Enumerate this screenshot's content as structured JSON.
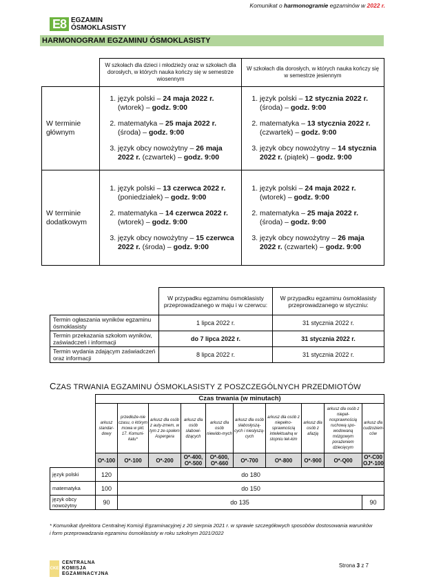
{
  "header": {
    "note_pre": "Komunikat o ",
    "note_bold": "harmonogramie",
    "note_mid": " egzaminów w ",
    "note_year": "2022 r.",
    "logo_mark": "E8",
    "logo_line1": "EGZAMIN",
    "logo_line2": "ÓSMOKLASISTY",
    "banner": "HARMONOGRAM EGZAMINU ÓSMOKLASISTY",
    "accent": "#b2d59b",
    "logo_color": "#6db43f"
  },
  "schedule": {
    "columns": [
      "W szkołach dla dzieci i młodzieży oraz w szkołach dla dorosłych, w których nauka kończy się w semestrze wiosennym",
      "W szkołach dla dorosłych, w których nauka kończy się w semestrze jesiennym"
    ],
    "rows": [
      {
        "label": "W terminie głównym",
        "spring": [
          {
            "subject": "język polski – ",
            "date": "24 maja 2022 r.",
            "day": " (wtorek) – ",
            "time": "godz. 9:00"
          },
          {
            "subject": "matematyka – ",
            "date": "25 maja 2022 r.",
            "day": " (środa) – ",
            "time": "godz. 9:00"
          },
          {
            "subject": "język obcy nowożytny – ",
            "date": "26 maja 2022 r.",
            "day": " (czwartek) – ",
            "time": "godz. 9:00"
          }
        ],
        "autumn": [
          {
            "subject": "język polski – ",
            "date": "12 stycznia 2022 r.",
            "day": " (środa) – ",
            "time": "godz. 9:00"
          },
          {
            "subject": "matematyka – ",
            "date": "13 stycznia 2022 r.",
            "day": " (czwartek) – ",
            "time": "godz. 9:00"
          },
          {
            "subject": "język obcy nowożytny – ",
            "date": "14 stycznia 2022 r.",
            "day": " (piątek) – ",
            "time": "godz. 9:00"
          }
        ]
      },
      {
        "label": "W terminie dodatkowym",
        "spring": [
          {
            "subject": "język polski – ",
            "date": "13 czerwca 2022 r.",
            "day": " (poniedziałek) – ",
            "time": "godz. 9:00"
          },
          {
            "subject": "matematyka – ",
            "date": "14 czerwca 2022 r.",
            "day": " (wtorek) – ",
            "time": "godz. 9:00"
          },
          {
            "subject": "język obcy nowożytny – ",
            "date": "15 czerwca 2022 r.",
            "day": " (środa) – ",
            "time": "godz. 9:00"
          }
        ],
        "autumn": [
          {
            "subject": "język polski – ",
            "date": "24 maja 2022 r.",
            "day": " (wtorek) – ",
            "time": "godz. 9:00"
          },
          {
            "subject": "matematyka – ",
            "date": "25 maja 2022 r.",
            "day": " (środa) – ",
            "time": "godz. 9:00"
          },
          {
            "subject": "język obcy nowożytny – ",
            "date": "26 maja 2022 r.",
            "day": " (czwartek) – ",
            "time": "godz. 9:00"
          }
        ]
      }
    ]
  },
  "results": {
    "columns": [
      "W przypadku egzaminu ósmoklasisty przeprowadzanego w maju i w czerwcu:",
      "W przypadku egzaminu ósmoklasisty przeprowadzanego w styczniu:"
    ],
    "rows": [
      {
        "label": "Termin ogłaszania wyników egzaminu ósmoklasisty",
        "a": "1 lipca 2022 r.",
        "b": "31 stycznia 2022 r.",
        "bold": false
      },
      {
        "label": "Termin przekazania szkołom wyników, zaświadczeń i informacji",
        "a": "do 7 lipca 2022 r.",
        "b": "31 stycznia 2022 r.",
        "bold": true
      },
      {
        "label": "Termin wydania zdającym zaświadczeń oraz informacji",
        "a": "8 lipca 2022 r.",
        "b": "31 stycznia 2022 r.",
        "bold": false
      }
    ]
  },
  "duration": {
    "title_first": "C",
    "title_rest": "ZAS TRWANIA EGZAMINU ÓSMOKLASISTY Z POSZCZEGÓLNYCH PRZEDMIOTÓW",
    "group_header": "Czas trwania (w minutach)",
    "sheets": [
      {
        "desc": "arkusz standar-dowy",
        "code": "O*-100"
      },
      {
        "desc": "przedłuże-nie czasu, o którym mowa w pkt. 17. Komuni-katu*",
        "code": "O*-100"
      },
      {
        "desc": "arkusz dla osób z auty-zmem, w tym z ze-społem Aspergera",
        "code": "O*-200"
      },
      {
        "desc": "arkusz dla osób słabowi-dzących",
        "code": "O*-400, O*-500"
      },
      {
        "desc": "arkusz dla osób niewido-mych",
        "code": "O*-600, O*-660"
      },
      {
        "desc": "arkusz dla osób słabosłyszą-cych i niesłyszą-cych",
        "code": "O*-700"
      },
      {
        "desc": "arkusz dla osób z niepełno-sprawnością intelektualną w stopniu lek-kim",
        "code": "O*-800"
      },
      {
        "desc": "arkusz dla osób z afazją",
        "code": "O*-900"
      },
      {
        "desc": "arkusz dla osób z niepeł-nosprawnością ruchową spo-wodowaną mózgowym porażeniem dziecięcym",
        "code": "O*-Q00"
      },
      {
        "desc": "arkusz dla cudzoziem-ców",
        "code": "O*-C00 OJ*-100"
      }
    ],
    "rows": [
      {
        "subject": "język polski",
        "standard": "120",
        "rest": "do 180"
      },
      {
        "subject": "matematyka",
        "standard": "100",
        "rest": "do 150"
      },
      {
        "subject": "język obcy nowożytny",
        "standard": "90",
        "rest": "do 135",
        "last": "90"
      }
    ]
  },
  "footnote": "* Komunikat dyrektora Centralnej Komisji Egzaminacyjnej z 20 sierpnia 2021 r. w sprawie szczegółowych sposobów dostosowania warunków i form przeprowadzania egzaminu ósmoklasisty w roku szkolnym 2021/2022",
  "footer": {
    "logo_mark": "CKE",
    "logo_lines": [
      "CENTRALNA",
      "KOMISJA",
      "EGZAMINACYJNA"
    ],
    "page_pre": "Strona ",
    "page_num": "3",
    "page_post": " z 7"
  }
}
